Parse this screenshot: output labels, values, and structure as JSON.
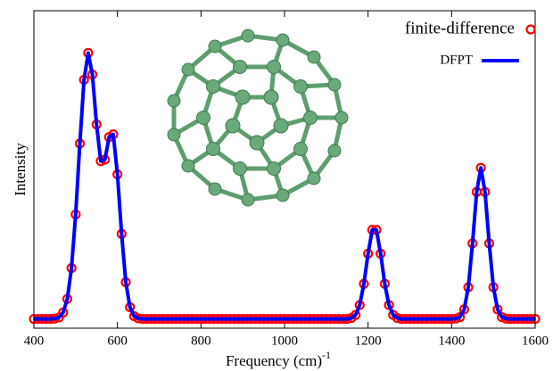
{
  "chart_data": {
    "type": "line",
    "xlabel": "Frequency (cm)",
    "xlabel_superscript": "-1",
    "ylabel": "Intensity",
    "xlim": [
      400,
      1600
    ],
    "xticks": [
      400,
      600,
      800,
      1000,
      1200,
      1400,
      1600
    ],
    "ylim": [
      -0.03,
      1
    ],
    "x": [
      400,
      410,
      420,
      430,
      440,
      450,
      460,
      470,
      480,
      490,
      500,
      510,
      520,
      530,
      540,
      550,
      560,
      570,
      580,
      590,
      600,
      610,
      620,
      630,
      640,
      650,
      660,
      670,
      680,
      690,
      700,
      710,
      720,
      730,
      740,
      750,
      760,
      770,
      780,
      790,
      800,
      810,
      820,
      830,
      840,
      850,
      860,
      870,
      880,
      890,
      900,
      910,
      920,
      930,
      940,
      950,
      960,
      970,
      980,
      990,
      1000,
      1010,
      1020,
      1030,
      1040,
      1050,
      1060,
      1070,
      1080,
      1090,
      1100,
      1110,
      1120,
      1130,
      1140,
      1150,
      1160,
      1170,
      1180,
      1190,
      1200,
      1210,
      1220,
      1230,
      1240,
      1250,
      1260,
      1270,
      1280,
      1290,
      1300,
      1310,
      1320,
      1330,
      1340,
      1350,
      1360,
      1370,
      1380,
      1390,
      1400,
      1410,
      1420,
      1430,
      1440,
      1450,
      1460,
      1470,
      1480,
      1490,
      1500,
      1510,
      1520,
      1530,
      1540,
      1550,
      1560,
      1570,
      1580,
      1590,
      1600
    ],
    "series": [
      {
        "name": "finite-difference",
        "style": "markers",
        "color": "#ff0000",
        "values": [
          0,
          0,
          0,
          0,
          0,
          0.001,
          0.005,
          0.021,
          0.065,
          0.165,
          0.339,
          0.569,
          0.776,
          0.863,
          0.793,
          0.631,
          0.512,
          0.517,
          0.59,
          0.599,
          0.469,
          0.276,
          0.119,
          0.038,
          0.009,
          0.002,
          0,
          0,
          0,
          0,
          0,
          0,
          0,
          0,
          0,
          0,
          0,
          0,
          0,
          0,
          0,
          0,
          0,
          0,
          0,
          0,
          0,
          0,
          0,
          0,
          0,
          0,
          0,
          0,
          0,
          0,
          0,
          0,
          0,
          0,
          0,
          0,
          0,
          0,
          0,
          0,
          0,
          0,
          0,
          0,
          0,
          0,
          0,
          0,
          0,
          0,
          0.003,
          0.013,
          0.045,
          0.114,
          0.212,
          0.289,
          0.289,
          0.212,
          0.114,
          0.045,
          0.013,
          0.003,
          0,
          0,
          0,
          0,
          0,
          0,
          0,
          0,
          0,
          0,
          0,
          0,
          0,
          0.001,
          0.006,
          0.031,
          0.103,
          0.245,
          0.412,
          0.49,
          0.412,
          0.245,
          0.103,
          0.031,
          0.006,
          0.001,
          0,
          0,
          0,
          0,
          0,
          0,
          0
        ]
      },
      {
        "name": "DFPT",
        "style": "line",
        "color": "#0000ff",
        "values": [
          0,
          0,
          0,
          0,
          0,
          0.001,
          0.005,
          0.021,
          0.065,
          0.165,
          0.339,
          0.569,
          0.776,
          0.863,
          0.793,
          0.631,
          0.512,
          0.517,
          0.59,
          0.599,
          0.469,
          0.276,
          0.119,
          0.038,
          0.009,
          0.002,
          0,
          0,
          0,
          0,
          0,
          0,
          0,
          0,
          0,
          0,
          0,
          0,
          0,
          0,
          0,
          0,
          0,
          0,
          0,
          0,
          0,
          0,
          0,
          0,
          0,
          0,
          0,
          0,
          0,
          0,
          0,
          0,
          0,
          0,
          0,
          0,
          0,
          0,
          0,
          0,
          0,
          0,
          0,
          0,
          0,
          0,
          0,
          0,
          0,
          0,
          0.003,
          0.013,
          0.045,
          0.114,
          0.212,
          0.289,
          0.289,
          0.212,
          0.114,
          0.045,
          0.013,
          0.003,
          0,
          0,
          0,
          0,
          0,
          0,
          0,
          0,
          0,
          0,
          0,
          0,
          0,
          0.001,
          0.006,
          0.031,
          0.103,
          0.245,
          0.412,
          0.49,
          0.412,
          0.245,
          0.103,
          0.031,
          0.006,
          0.001,
          0,
          0,
          0,
          0,
          0,
          0,
          0
        ]
      }
    ],
    "legend": "upper right"
  }
}
